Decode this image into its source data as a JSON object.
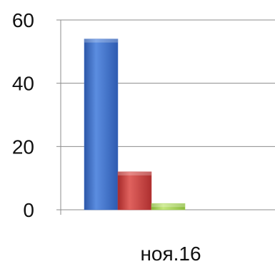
{
  "chart_data": {
    "type": "bar",
    "categories": [
      "ноя.16"
    ],
    "series": [
      {
        "values": [
          54
        ],
        "color": "#3f6fc6"
      },
      {
        "values": [
          12
        ],
        "color": "#c23b3b"
      },
      {
        "values": [
          2
        ],
        "color": "#9fce4c"
      }
    ],
    "ylim": [
      0,
      60
    ],
    "yticks": [
      0,
      20,
      40,
      60
    ],
    "grid": true,
    "legend": "none",
    "title": "",
    "xlabel": "",
    "ylabel": ""
  }
}
